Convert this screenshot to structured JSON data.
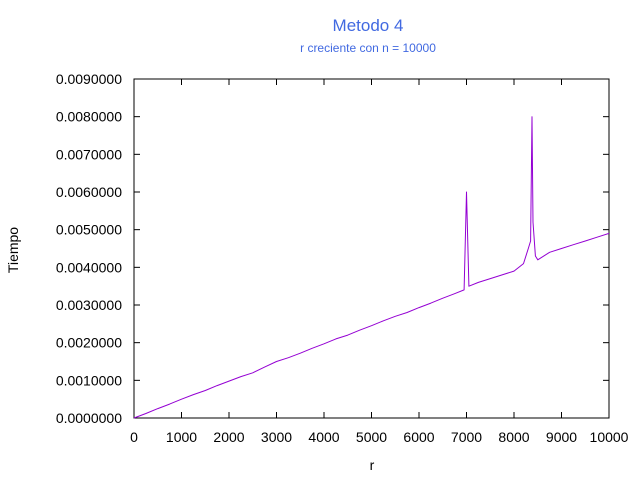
{
  "chart_data": {
    "type": "line",
    "title": "Metodo 4",
    "subtitle": "r creciente con n = 10000",
    "xlabel": "r",
    "ylabel": "Tiempo",
    "xlim": [
      0,
      10000
    ],
    "ylim": [
      0,
      0.009
    ],
    "xticks": [
      0,
      1000,
      2000,
      3000,
      4000,
      5000,
      6000,
      7000,
      8000,
      9000,
      10000
    ],
    "yticks": [
      0,
      0.001,
      0.002,
      0.003,
      0.004,
      0.005,
      0.006,
      0.007,
      0.008,
      0.009
    ],
    "xtick_labels": [
      "0",
      "1000",
      "2000",
      "3000",
      "4000",
      "5000",
      "6000",
      "7000",
      "8000",
      "9000",
      "10000"
    ],
    "ytick_labels": [
      "0.0000000",
      "0.0010000",
      "0.0020000",
      "0.0030000",
      "0.0040000",
      "0.0050000",
      "0.0060000",
      "0.0070000",
      "0.0080000",
      "0.0090000"
    ],
    "grid": false,
    "legend": "none",
    "series": [
      {
        "color": "#9400d3",
        "x": [
          0,
          250,
          500,
          750,
          1000,
          1250,
          1500,
          1750,
          2000,
          2250,
          2500,
          2750,
          3000,
          3250,
          3500,
          3750,
          4000,
          4250,
          4500,
          4750,
          5000,
          5250,
          5500,
          5750,
          6000,
          6250,
          6500,
          6750,
          6950,
          7000,
          7050,
          7250,
          7500,
          7750,
          8000,
          8200,
          8300,
          8350,
          8380,
          8400,
          8450,
          8500,
          8750,
          9000,
          9250,
          9500,
          9750,
          10000
        ],
        "values": [
          0.0,
          0.00012,
          0.00025,
          0.00037,
          0.0005,
          0.00062,
          0.00073,
          0.00086,
          0.00098,
          0.0011,
          0.0012,
          0.00135,
          0.0015,
          0.0016,
          0.00172,
          0.00185,
          0.00197,
          0.0021,
          0.0022,
          0.00233,
          0.00245,
          0.00258,
          0.0027,
          0.0028,
          0.00293,
          0.00305,
          0.00318,
          0.0033,
          0.0034,
          0.006,
          0.0035,
          0.0036,
          0.0037,
          0.0038,
          0.0039,
          0.0041,
          0.0045,
          0.0047,
          0.008,
          0.0052,
          0.0043,
          0.0042,
          0.0044,
          0.0045,
          0.0046,
          0.0047,
          0.0048,
          0.0049
        ]
      }
    ]
  }
}
